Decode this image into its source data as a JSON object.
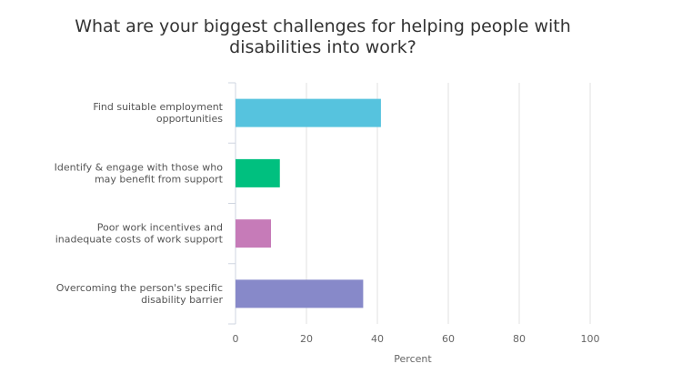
{
  "chart_data": {
    "type": "bar",
    "orientation": "horizontal",
    "title": "What are your biggest challenges for helping people with\ndisabilities into work?",
    "categories": [
      [
        "Find suitable employment",
        "opportunities"
      ],
      [
        "Identify & engage with those who",
        "may benefit from support"
      ],
      [
        "Poor work incentives and",
        "inadequate costs of work support"
      ],
      [
        "Overcoming the person's specific",
        "disability barrier"
      ]
    ],
    "values": [
      41,
      12.5,
      10,
      36
    ],
    "colors": [
      "#56c3de",
      "#00c07f",
      "#c67bb8",
      "#8789c9"
    ],
    "xlabel": "Percent",
    "ylabel": "",
    "xlim": [
      0,
      100
    ],
    "xticks": [
      0,
      20,
      40,
      60,
      80,
      100
    ],
    "grid": "vertical"
  }
}
